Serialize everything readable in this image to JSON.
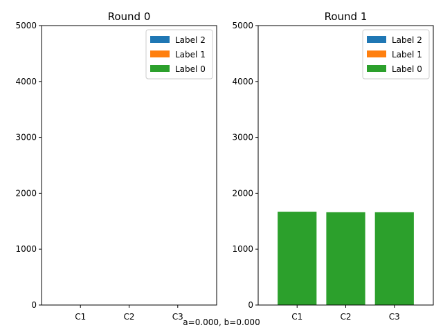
{
  "chart_data": [
    {
      "type": "bar",
      "stacked": true,
      "title": "Round 0",
      "categories": [
        "C1",
        "C2",
        "C3"
      ],
      "series": [
        {
          "name": "Label 0",
          "color": "#2ca02c",
          "values": [
            0,
            0,
            0
          ]
        },
        {
          "name": "Label 1",
          "color": "#ff7f0e",
          "values": [
            0,
            0,
            0
          ]
        },
        {
          "name": "Label 2",
          "color": "#1f77b4",
          "values": [
            0,
            0,
            0
          ]
        }
      ],
      "ylim": [
        0,
        5000
      ],
      "yticks": [
        0,
        1000,
        2000,
        3000,
        4000,
        5000
      ],
      "legend": "top-right",
      "grid": false
    },
    {
      "type": "bar",
      "stacked": true,
      "title": "Round 1",
      "categories": [
        "C1",
        "C2",
        "C3"
      ],
      "series": [
        {
          "name": "Label 0",
          "color": "#2ca02c",
          "values": [
            1670,
            1660,
            1660
          ]
        },
        {
          "name": "Label 1",
          "color": "#ff7f0e",
          "values": [
            0,
            0,
            0
          ]
        },
        {
          "name": "Label 2",
          "color": "#1f77b4",
          "values": [
            0,
            0,
            0
          ]
        }
      ],
      "ylim": [
        0,
        5000
      ],
      "yticks": [
        0,
        1000,
        2000,
        3000,
        4000,
        5000
      ],
      "legend": "top-right",
      "grid": false
    }
  ],
  "footer_text": "a=0.000, b=0.000"
}
